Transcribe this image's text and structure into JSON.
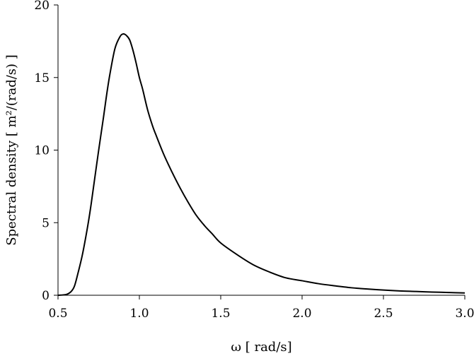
{
  "chart_data": {
    "type": "line",
    "xlabel": "ω [ rad/s]",
    "ylabel": "Spectral density [ m²/(rad/s) ]",
    "xlim": [
      0.5,
      3.0
    ],
    "ylim": [
      0,
      20
    ],
    "xticks": [
      0.5,
      1.0,
      1.5,
      2.0,
      2.5,
      3.0
    ],
    "xtick_labels": [
      "0.5",
      "1.0",
      "1.5",
      "2.0",
      "2.5",
      "3.0"
    ],
    "yticks": [
      0,
      5,
      10,
      15,
      20
    ],
    "ytick_labels": [
      "0",
      "5",
      "10",
      "15",
      "20"
    ],
    "grid": false,
    "legend": "none",
    "line_color": "#000000",
    "series": [
      {
        "x": [
          0.5,
          0.55,
          0.58,
          0.6,
          0.62,
          0.65,
          0.68,
          0.7,
          0.72,
          0.75,
          0.78,
          0.8,
          0.82,
          0.85,
          0.88,
          0.9,
          0.92,
          0.94,
          0.96,
          0.98,
          1.0,
          1.02,
          1.05,
          1.08,
          1.1,
          1.15,
          1.2,
          1.25,
          1.3,
          1.35,
          1.4,
          1.45,
          1.5,
          1.6,
          1.7,
          1.8,
          1.9,
          2.0,
          2.1,
          2.2,
          2.3,
          2.4,
          2.5,
          2.6,
          2.7,
          2.8,
          2.9,
          3.0
        ],
        "y": [
          0.0,
          0.05,
          0.25,
          0.6,
          1.4,
          2.8,
          4.6,
          6.0,
          7.6,
          10.0,
          12.3,
          13.9,
          15.3,
          17.0,
          17.8,
          18.0,
          17.9,
          17.6,
          16.9,
          16.0,
          15.0,
          14.2,
          12.8,
          11.7,
          11.1,
          9.7,
          8.5,
          7.4,
          6.4,
          5.5,
          4.8,
          4.2,
          3.6,
          2.8,
          2.1,
          1.6,
          1.2,
          1.0,
          0.8,
          0.65,
          0.52,
          0.43,
          0.36,
          0.3,
          0.26,
          0.22,
          0.19,
          0.16
        ]
      }
    ]
  }
}
